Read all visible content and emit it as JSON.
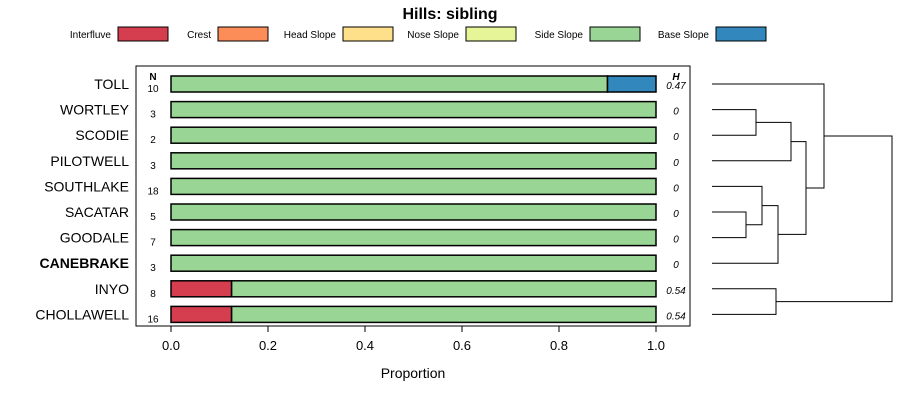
{
  "chart_data": {
    "type": "bar",
    "orientation": "horizontal",
    "stacked": true,
    "title": "Hills: sibling",
    "xlabel": "Proportion",
    "xlim": [
      0,
      1
    ],
    "xticks": [
      "0.0",
      "0.2",
      "0.4",
      "0.6",
      "0.8",
      "1.0"
    ],
    "n_header": "N",
    "h_header": "H",
    "legend_position": "top",
    "legend": [
      {
        "name": "Interfluve",
        "color": "#d53e4f"
      },
      {
        "name": "Crest",
        "color": "#fc8d59"
      },
      {
        "name": "Head Slope",
        "color": "#fee08b"
      },
      {
        "name": "Nose Slope",
        "color": "#e6f598"
      },
      {
        "name": "Side Slope",
        "color": "#99d594"
      },
      {
        "name": "Base Slope",
        "color": "#3288bd"
      }
    ],
    "rows": [
      {
        "label": "TOLL",
        "n": "10",
        "h": "0.47",
        "bold": false,
        "values": [
          0,
          0,
          0,
          0,
          0.9,
          0.1
        ]
      },
      {
        "label": "WORTLEY",
        "n": "3",
        "h": "0",
        "bold": false,
        "values": [
          0,
          0,
          0,
          0,
          1.0,
          0
        ]
      },
      {
        "label": "SCODIE",
        "n": "2",
        "h": "0",
        "bold": false,
        "values": [
          0,
          0,
          0,
          0,
          1.0,
          0
        ]
      },
      {
        "label": "PILOTWELL",
        "n": "3",
        "h": "0",
        "bold": false,
        "values": [
          0,
          0,
          0,
          0,
          1.0,
          0
        ]
      },
      {
        "label": "SOUTHLAKE",
        "n": "18",
        "h": "0",
        "bold": false,
        "values": [
          0,
          0,
          0,
          0,
          1.0,
          0
        ]
      },
      {
        "label": "SACATAR",
        "n": "5",
        "h": "0",
        "bold": false,
        "values": [
          0,
          0,
          0,
          0,
          1.0,
          0
        ]
      },
      {
        "label": "GOODALE",
        "n": "7",
        "h": "0",
        "bold": false,
        "values": [
          0,
          0,
          0,
          0,
          1.0,
          0
        ]
      },
      {
        "label": "CANEBRAKE",
        "n": "3",
        "h": "0",
        "bold": true,
        "values": [
          0,
          0,
          0,
          0,
          1.0,
          0
        ]
      },
      {
        "label": "INYO",
        "n": "8",
        "h": "0.54",
        "bold": false,
        "values": [
          0.125,
          0,
          0,
          0,
          0.875,
          0
        ]
      },
      {
        "label": "CHOLLAWELL",
        "n": "16",
        "h": "0.54",
        "bold": false,
        "values": [
          0.125,
          0,
          0,
          0,
          0.875,
          0
        ]
      }
    ],
    "dendrogram_note": "hierarchical clustering tree of the rows, drawn to the right of the bars"
  }
}
